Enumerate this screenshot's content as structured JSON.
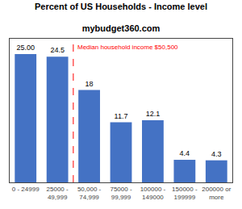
{
  "chart_data": {
    "type": "bar",
    "title": "Percent of US Households - Income level",
    "subtitle": "mybudget360.com",
    "categories": [
      "0 - 24999",
      "25000 -\n49,999",
      "50,000 -\n74,999",
      "75000 -\n99,999",
      "100000 -\n149000",
      "150000 -\n199999",
      "200000 or\nmore"
    ],
    "values": [
      25.0,
      24.5,
      18.0,
      11.7,
      12.1,
      4.4,
      4.3
    ],
    "value_labels": [
      "25.00",
      "24.5",
      "18",
      "11.7",
      "12.1",
      "4.4",
      "4.3"
    ],
    "data_labels": true,
    "color": "#4472C4",
    "ylim": [
      0,
      28
    ],
    "tick_labels": "x",
    "grid": false,
    "annotations": [
      {
        "text": "Median household income $50,500",
        "color": "#FF0000"
      }
    ]
  }
}
